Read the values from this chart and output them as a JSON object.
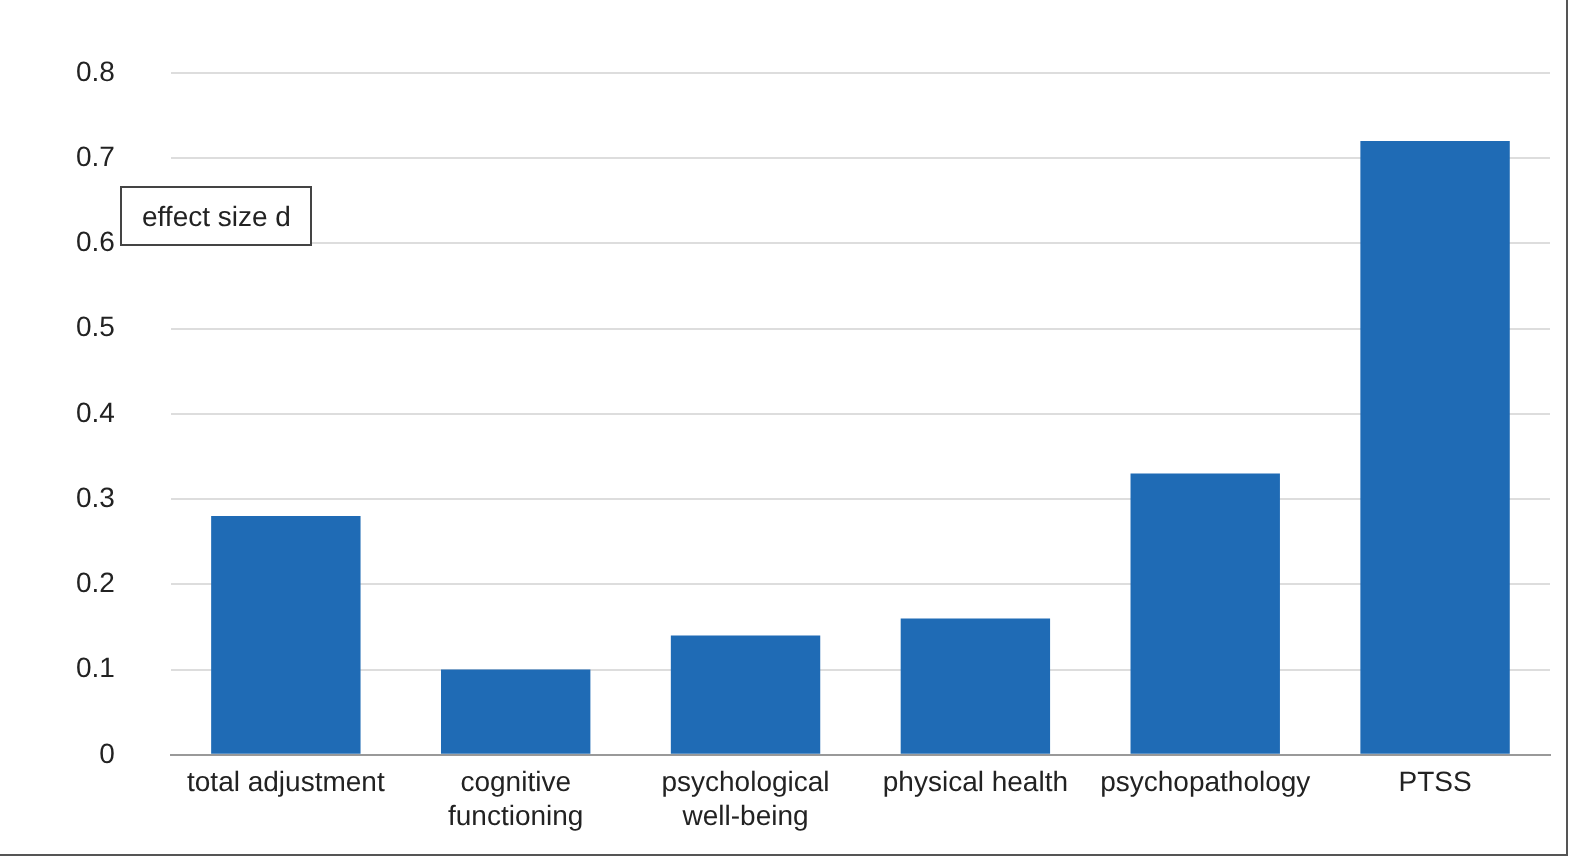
{
  "chart_data": {
    "type": "bar",
    "categories": [
      "total adjustment",
      "cognitive functioning",
      "psychological well-being",
      "physical health",
      "psychopathology",
      "PTSS"
    ],
    "values": [
      0.28,
      0.1,
      0.14,
      0.16,
      0.33,
      0.72
    ],
    "color": "#1f6bb5",
    "ylim": [
      0,
      0.8
    ],
    "yticks": [
      0,
      0.1,
      0.2,
      0.3,
      0.4,
      0.5,
      0.6,
      0.7,
      0.8
    ],
    "grid": "y",
    "annotations": [
      "effect size d"
    ]
  }
}
